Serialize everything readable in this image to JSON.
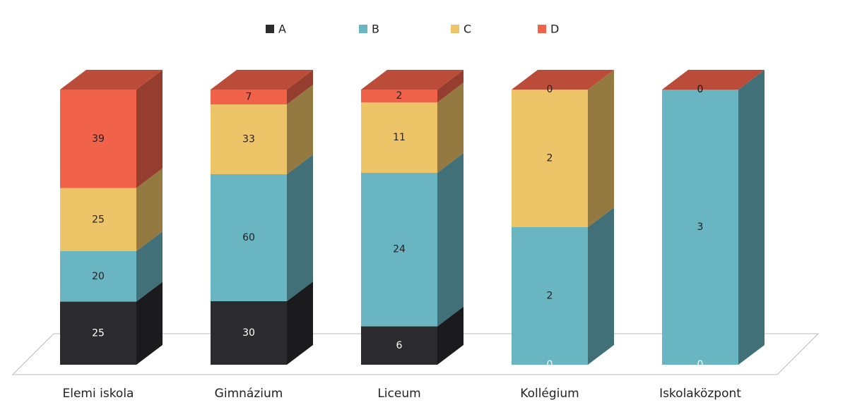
{
  "chart_data": {
    "type": "bar3d_stacked_percent",
    "categories": [
      "Elemi iskola",
      "Gimnázium",
      "Liceum",
      "Kollégium",
      "Iskolaközpont"
    ],
    "series": [
      {
        "name": "A",
        "color": "#2b2b2e",
        "values": [
          25,
          30,
          6,
          0,
          0
        ]
      },
      {
        "name": "B",
        "color": "#6ab5c2",
        "values": [
          20,
          60,
          24,
          2,
          3
        ]
      },
      {
        "name": "C",
        "color": "#eec468",
        "values": [
          25,
          33,
          11,
          2,
          0
        ]
      },
      {
        "name": "D",
        "color": "#f0624a",
        "values": [
          39,
          7,
          2,
          0,
          0
        ]
      }
    ],
    "legend": "top"
  }
}
